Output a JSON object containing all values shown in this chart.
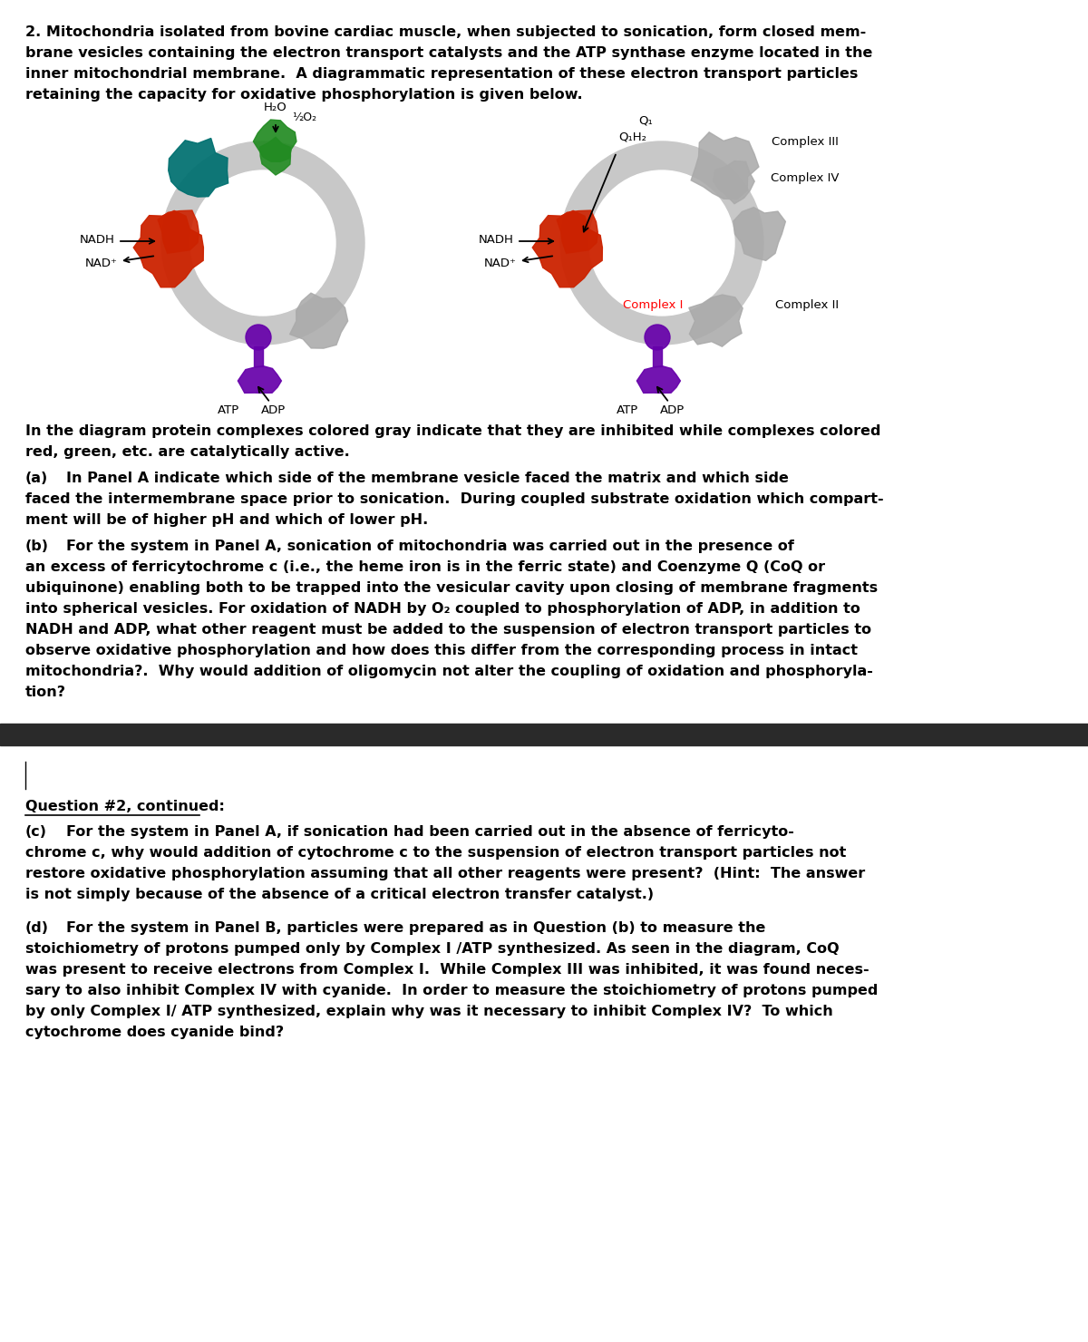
{
  "title_text": "2. Mitochondria isolated from bovine cardiac muscle, when subjected to sonication, form closed mem-\nbrane vesicles containing the electron transport catalysts and the ATP synthase enzyme located in the\ninner mitochondrial membrane.  A diagrammatic representation of these electron transport particles\nretaining the capacity for oxidative phosphorylation is given below.",
  "diagram_caption": "In the diagram protein complexes colored gray indicate that they are inhibited while complexes colored\nred, green, etc. are catalytically active.",
  "part_a_label": "(a)",
  "part_a_text": "        In Panel A indicate which side of the membrane vesicle faced the matrix and which side\nfaced the intermembrane space prior to sonication.  During coupled substrate oxidation which compart-\nment will be of higher pH and which of lower pH.",
  "part_b_label": "(b)",
  "part_b_text": "        For the system in Panel A, sonication of mitochondria was carried out in the presence of\nan excess of ferricytochrome c (i.e., the heme iron is in the ferric state) and Coenzyme Q (CoQ or\nubiquinone) enabling both to be trapped into the vesicular cavity upon closing of membrane fragments\ninto spherical vesicles. For oxidation of NADH by O₂ coupled to phosphorylation of ADP, in addition to\nNADH and ADP, what other reagent must be added to the suspension of electron transport particles to\nobserve oxidative phosphorylation and how does this differ from the corresponding process in intact\nmitochondria?.  Why would addition of oligomycin not alter the coupling of oxidation and phosphoryla-\ntion?",
  "separator_color": "#2a2a2a",
  "page2_header": "Question #2, continued:",
  "part_c_label": "(c)",
  "part_c_text": "        For the system in Panel A, if sonication had been carried out in the absence of ferricyto-\nchrome c, why would addition of cytochrome c to the suspension of electron transport particles not\nrestore oxidative phosphorylation assuming that all other reagents were present?  (Hint:  The answer\nis not simply because of the absence of a critical electron transfer catalyst.)",
  "part_d_label": "(d)",
  "part_d_text": "        For the system in Panel B, particles were prepared as in Question (b) to measure the\nstoichiometry of protons pumped only by Complex I /ATP synthesized. As seen in the diagram, CoQ\nwas present to receive electrons from Complex I.  While Complex III was inhibited, it was found neces-\nsary to also inhibit Complex IV with cyanide.  In order to measure the stoichiometry of protons pumped\nby only Complex I/ ATP synthesized, explain why was it necessary to inhibit Complex IV?  To which\ncytochrome does cyanide bind?",
  "bg_color": "#ffffff",
  "text_color": "#000000",
  "font_size_body": 11.5,
  "ring_color": "#c8c8c8"
}
